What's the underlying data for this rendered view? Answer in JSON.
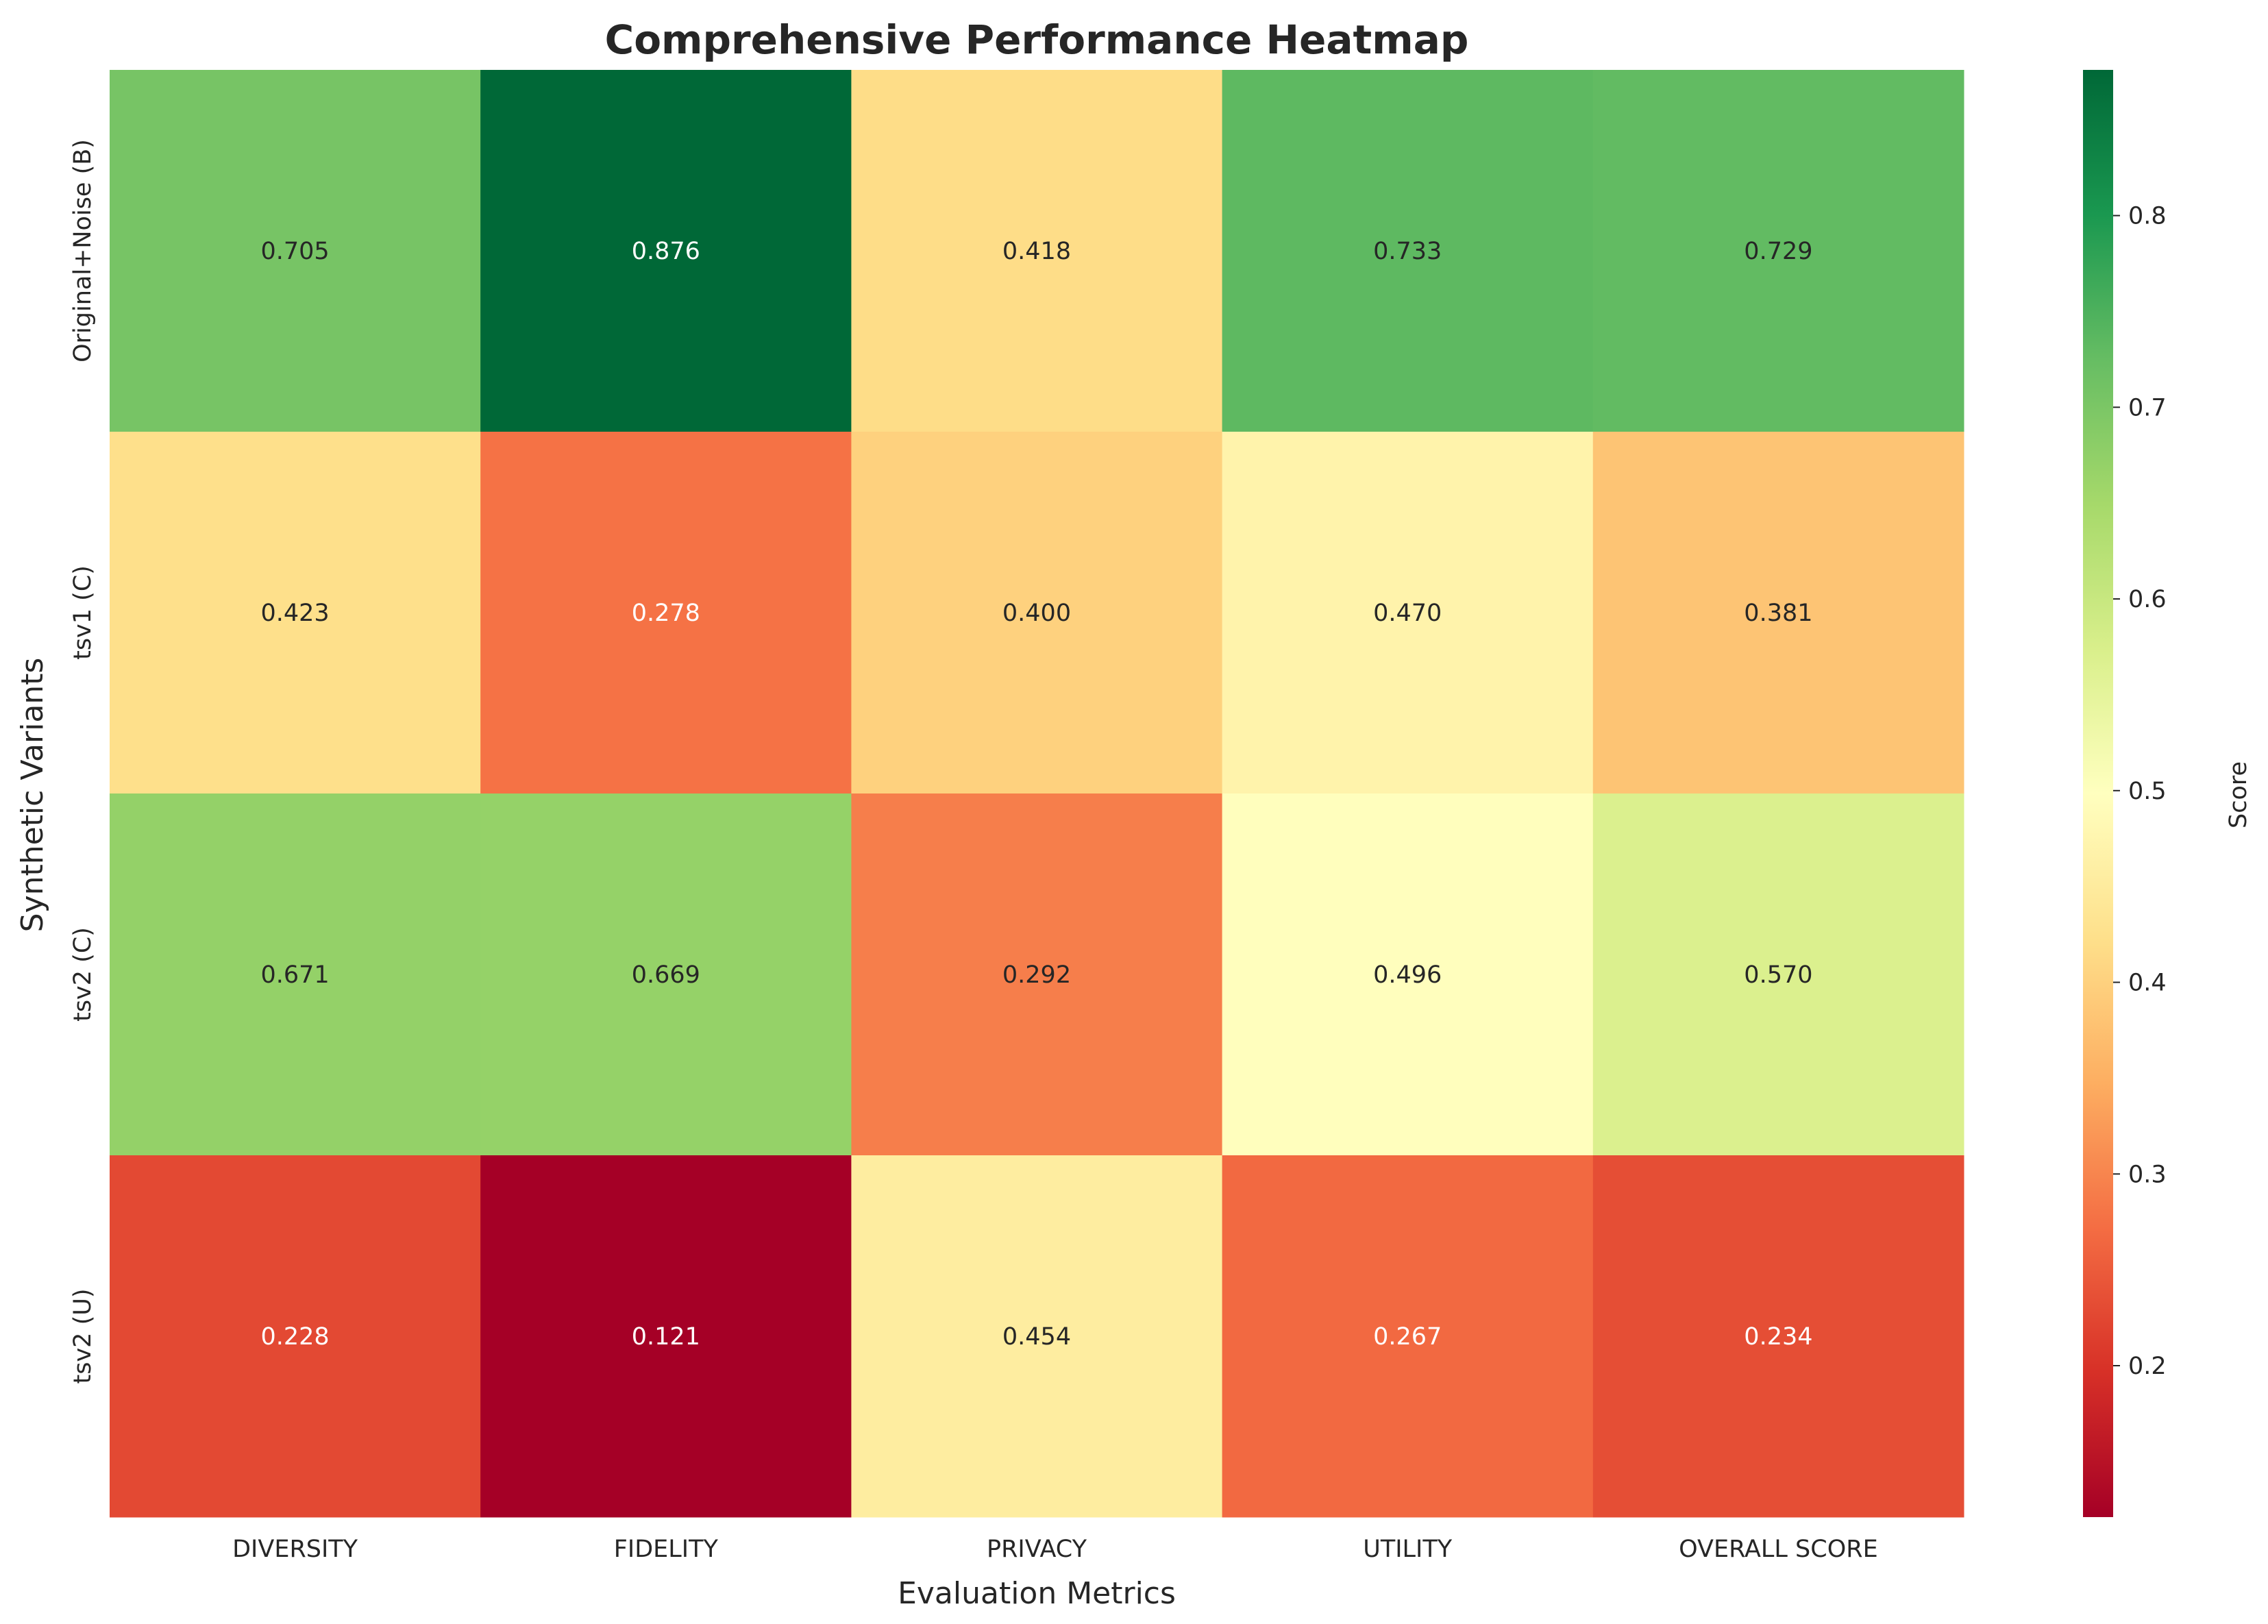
{
  "chart_data": {
    "type": "heatmap",
    "title": "Comprehensive Performance Heatmap",
    "xlabel": "Evaluation Metrics",
    "ylabel": "Synthetic Variants",
    "x_categories": [
      "DIVERSITY",
      "FIDELITY",
      "PRIVACY",
      "UTILITY",
      "OVERALL SCORE"
    ],
    "y_categories": [
      "Original+Noise (B)",
      "tsv1 (C)",
      "tsv2 (C)",
      "tsv2 (U)"
    ],
    "values": [
      [
        0.705,
        0.876,
        0.418,
        0.733,
        0.729
      ],
      [
        0.423,
        0.278,
        0.4,
        0.47,
        0.381
      ],
      [
        0.671,
        0.669,
        0.292,
        0.496,
        0.57
      ],
      [
        0.228,
        0.121,
        0.454,
        0.267,
        0.234
      ]
    ],
    "value_labels": [
      [
        "0.705",
        "0.876",
        "0.418",
        "0.733",
        "0.729"
      ],
      [
        "0.423",
        "0.278",
        "0.400",
        "0.470",
        "0.381"
      ],
      [
        "0.671",
        "0.669",
        "0.292",
        "0.496",
        "0.570"
      ],
      [
        "0.228",
        "0.121",
        "0.454",
        "0.267",
        "0.234"
      ]
    ],
    "colormap": "RdYlGn",
    "colorbar": {
      "label": "Score",
      "range": [
        0.121,
        0.876
      ],
      "ticks": [
        0.2,
        0.3,
        0.4,
        0.5,
        0.6,
        0.7,
        0.8
      ],
      "tick_labels": [
        "0.2",
        "0.3",
        "0.4",
        "0.5",
        "0.6",
        "0.7",
        "0.8"
      ]
    },
    "grid": false
  }
}
